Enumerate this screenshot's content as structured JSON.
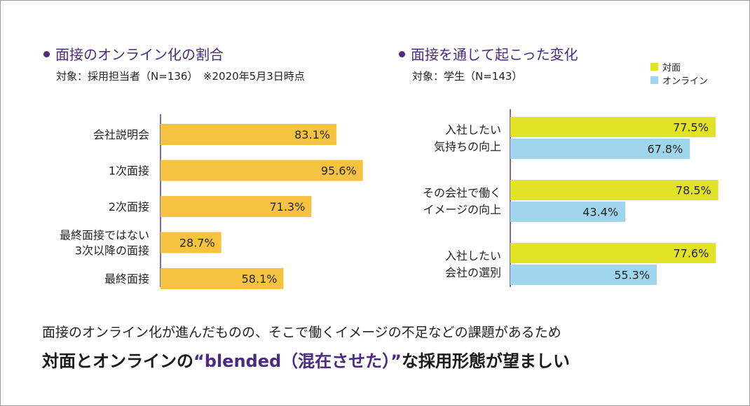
{
  "colors": {
    "accent": "#4b2a82",
    "face_to_face": "#e2e327",
    "online": "#9fd6ee",
    "orange": "#f6c340",
    "axis": "#4b2a82"
  },
  "left": {
    "title": "面接のオンライン化の割合",
    "subtitle": "対象：採用担当者（N=136）　※2020年5月3日時点"
  },
  "right": {
    "title": "面接を通じて起こった変化",
    "subtitle": "対象：学生（N=143）"
  },
  "legend": {
    "face": "対面",
    "online": "オンライン"
  },
  "caption": {
    "line1": "面接のオンライン化が進んだものの、そこで働くイメージの不足などの課題があるため",
    "line2_a": "対面とオンラインの",
    "line2_em": "“blended（混在させた）”",
    "line2_b": "な採用形態が望ましい"
  },
  "chart_data": [
    {
      "type": "bar",
      "orientation": "horizontal",
      "title": "面接のオンライン化の割合",
      "categories": [
        [
          "会社説明会"
        ],
        [
          "1次面接"
        ],
        [
          "2次面接"
        ],
        [
          "最終面接ではない",
          "3次以降の面接"
        ],
        [
          "最終面接"
        ]
      ],
      "values": [
        83.1,
        95.6,
        71.3,
        28.7,
        58.1
      ],
      "labels": [
        "83.1%",
        "95.6%",
        "71.3%",
        "28.7%",
        "58.1%"
      ],
      "xlim": [
        0,
        100
      ]
    },
    {
      "type": "bar",
      "orientation": "horizontal",
      "title": "面接を通じて起こった変化",
      "categories": [
        [
          "入社したい",
          "気持ちの向上"
        ],
        [
          "その会社で働く",
          "イメージの向上"
        ],
        [
          "入社したい",
          "会社の選別"
        ]
      ],
      "series": [
        {
          "name": "対面",
          "values": [
            77.5,
            78.5,
            77.6
          ],
          "labels": [
            "77.5%",
            "78.5%",
            "77.6%"
          ]
        },
        {
          "name": "オンライン",
          "values": [
            67.8,
            43.4,
            55.3
          ],
          "labels": [
            "67.8%",
            "43.4%",
            "55.3%"
          ]
        }
      ],
      "xlim": [
        0,
        100
      ]
    }
  ]
}
